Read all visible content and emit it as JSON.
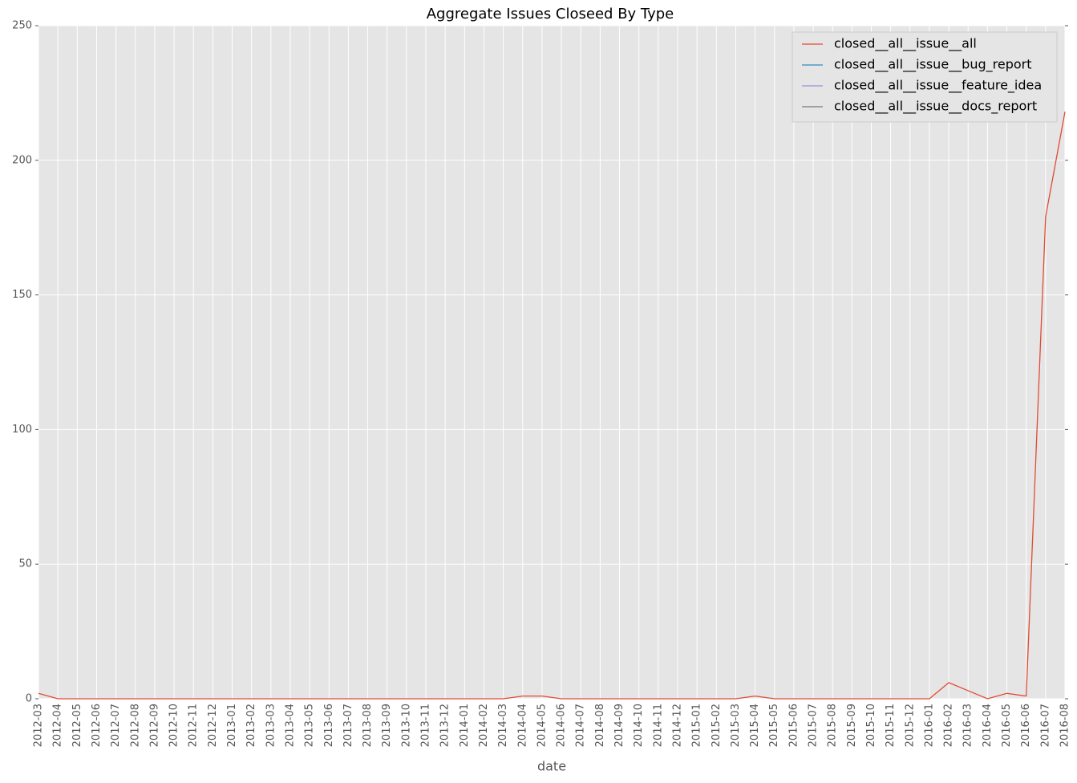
{
  "chart_data": {
    "type": "line",
    "title": "Aggregate Issues Closeed By Type",
    "x_label": "date",
    "categories": [
      "2012-03",
      "2012-04",
      "2012-05",
      "2012-06",
      "2012-07",
      "2012-08",
      "2012-09",
      "2012-10",
      "2012-11",
      "2012-12",
      "2013-01",
      "2013-02",
      "2013-03",
      "2013-04",
      "2013-05",
      "2013-06",
      "2013-07",
      "2013-08",
      "2013-09",
      "2013-10",
      "2013-11",
      "2013-12",
      "2014-01",
      "2014-02",
      "2014-03",
      "2014-04",
      "2014-05",
      "2014-06",
      "2014-07",
      "2014-08",
      "2014-09",
      "2014-10",
      "2014-11",
      "2014-12",
      "2015-01",
      "2015-02",
      "2015-03",
      "2015-04",
      "2015-05",
      "2015-06",
      "2015-07",
      "2015-08",
      "2015-09",
      "2015-10",
      "2015-11",
      "2015-12",
      "2016-01",
      "2016-02",
      "2016-03",
      "2016-04",
      "2016-05",
      "2016-06",
      "2016-07",
      "2016-08"
    ],
    "series": [
      {
        "name": "closed__all__issue__all",
        "color": "#E24A33",
        "values": [
          2,
          0,
          0,
          0,
          0,
          0,
          0,
          0,
          0,
          0,
          0,
          0,
          0,
          0,
          0,
          0,
          0,
          0,
          0,
          0,
          0,
          0,
          0,
          0,
          0,
          1,
          1,
          0,
          0,
          0,
          0,
          0,
          0,
          0,
          0,
          0,
          0,
          1,
          0,
          0,
          0,
          0,
          0,
          0,
          0,
          0,
          0,
          6,
          3,
          0,
          2,
          1,
          179,
          218
        ]
      },
      {
        "name": "closed__all__issue__bug_report",
        "color": "#348ABD",
        "values": [
          null,
          null,
          null,
          null,
          null,
          null,
          null,
          null,
          null,
          null,
          null,
          null,
          null,
          null,
          null,
          null,
          null,
          null,
          null,
          null,
          null,
          null,
          null,
          null,
          null,
          null,
          null,
          null,
          null,
          null,
          null,
          null,
          null,
          null,
          null,
          null,
          null,
          null,
          null,
          null,
          null,
          null,
          null,
          null,
          null,
          null,
          null,
          null,
          null,
          null,
          null,
          null,
          null,
          null
        ]
      },
      {
        "name": "closed__all__issue__feature_idea",
        "color": "#988ED5",
        "values": [
          null,
          null,
          null,
          null,
          null,
          null,
          null,
          null,
          null,
          null,
          null,
          null,
          null,
          null,
          null,
          null,
          null,
          null,
          null,
          null,
          null,
          null,
          null,
          null,
          null,
          null,
          null,
          null,
          null,
          null,
          null,
          null,
          null,
          null,
          null,
          null,
          null,
          null,
          null,
          null,
          null,
          null,
          null,
          null,
          null,
          null,
          null,
          null,
          null,
          null,
          null,
          null,
          null,
          null
        ]
      },
      {
        "name": "closed__all__issue__docs_report",
        "color": "#777777",
        "values": [
          null,
          null,
          null,
          null,
          null,
          null,
          null,
          null,
          null,
          null,
          null,
          null,
          null,
          null,
          null,
          null,
          null,
          null,
          null,
          null,
          null,
          null,
          null,
          null,
          null,
          null,
          null,
          null,
          null,
          null,
          null,
          null,
          null,
          null,
          null,
          null,
          null,
          null,
          null,
          null,
          null,
          null,
          null,
          null,
          null,
          null,
          null,
          null,
          null,
          null,
          null,
          null,
          null,
          null
        ]
      }
    ],
    "ylim": [
      0,
      250
    ],
    "yticks": [
      0,
      50,
      100,
      150,
      200,
      250
    ],
    "grid": true,
    "legend": "upper right"
  }
}
